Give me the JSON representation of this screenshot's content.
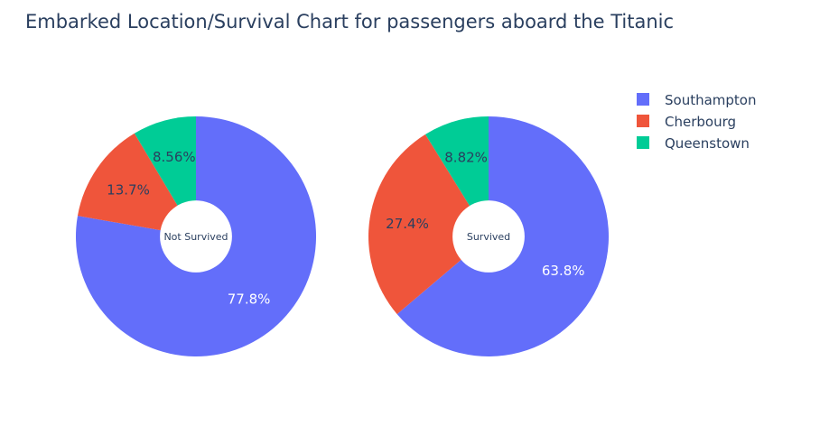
{
  "title": "Embarked Location/Survival Chart for passengers aboard the Titanic",
  "colors": {
    "Southampton": "#636efa",
    "Cherbourg": "#ef553b",
    "Queenstown": "#00cc96"
  },
  "chart_data": {
    "type": "pie",
    "hole": true,
    "legend": {
      "position": "top-right",
      "entries": [
        "Southampton",
        "Cherbourg",
        "Queenstown"
      ]
    },
    "pies": [
      {
        "name": "Not Survived",
        "slices": [
          {
            "label": "Southampton",
            "percent": 77.8,
            "text": "77.8%"
          },
          {
            "label": "Cherbourg",
            "percent": 13.7,
            "text": "13.7%"
          },
          {
            "label": "Queenstown",
            "percent": 8.56,
            "text": "8.56%"
          }
        ]
      },
      {
        "name": "Survived",
        "slices": [
          {
            "label": "Southampton",
            "percent": 63.8,
            "text": "63.8%"
          },
          {
            "label": "Cherbourg",
            "percent": 27.4,
            "text": "27.4%"
          },
          {
            "label": "Queenstown",
            "percent": 8.82,
            "text": "8.82%"
          }
        ]
      }
    ]
  }
}
